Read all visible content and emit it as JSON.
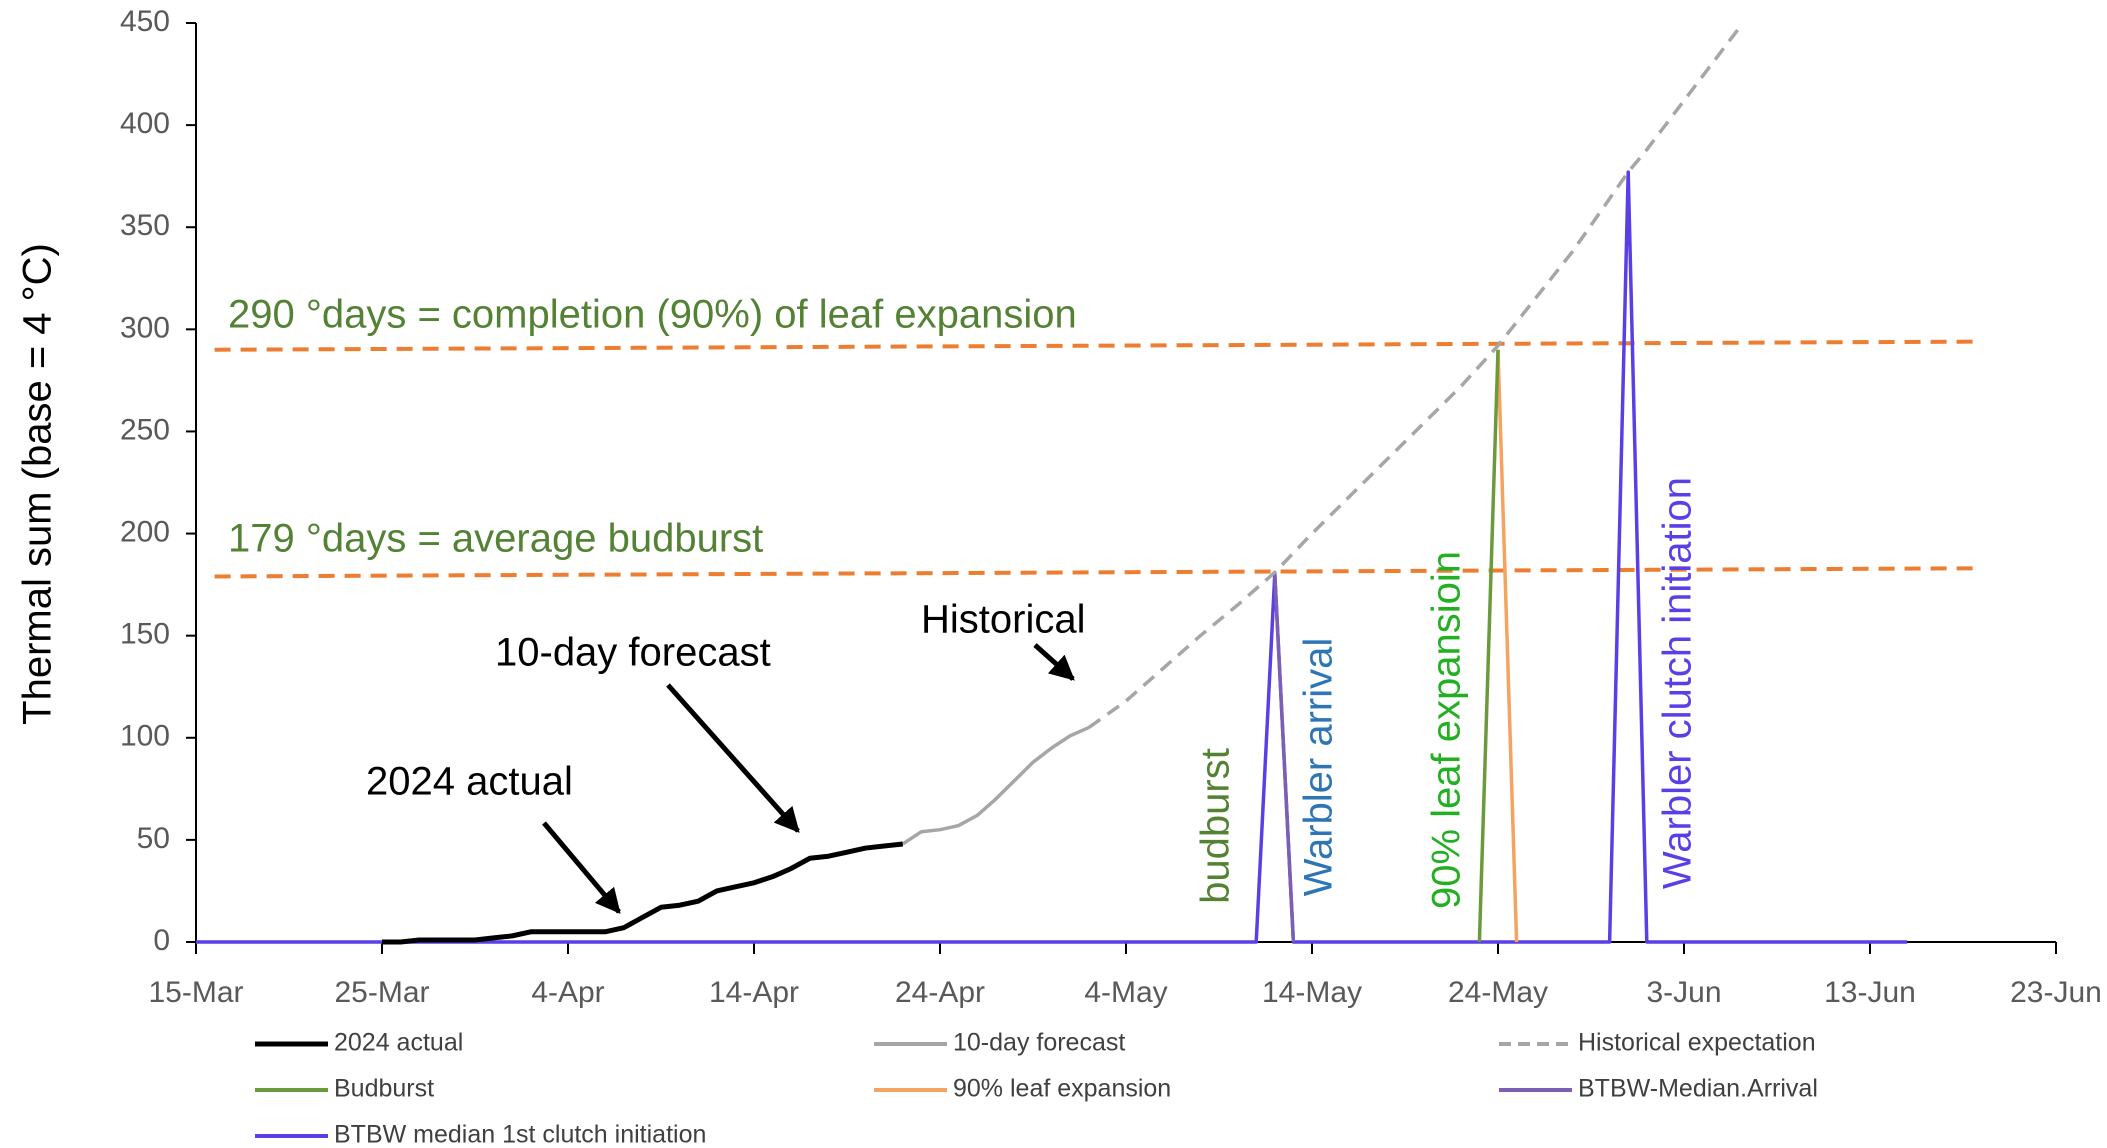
{
  "chart_data": {
    "type": "line",
    "y_label": "Thermal sum (base = 4 °C)",
    "xlim": [
      0,
      100
    ],
    "xticks": [
      {
        "value": 0,
        "label": "15-Mar"
      },
      {
        "value": 10,
        "label": "25-Mar"
      },
      {
        "value": 20,
        "label": "4-Apr"
      },
      {
        "value": 30,
        "label": "14-Apr"
      },
      {
        "value": 40,
        "label": "24-Apr"
      },
      {
        "value": 50,
        "label": "4-May"
      },
      {
        "value": 60,
        "label": "14-May"
      },
      {
        "value": 70,
        "label": "24-May"
      },
      {
        "value": 80,
        "label": "3-Jun"
      },
      {
        "value": 90,
        "label": "13-Jun"
      },
      {
        "value": 100,
        "label": "23-Jun"
      }
    ],
    "ylim": [
      0,
      450
    ],
    "yticks": [
      0,
      50,
      100,
      150,
      200,
      250,
      300,
      350,
      400,
      450
    ],
    "series": [
      {
        "name": "2024 actual",
        "color": "#000000",
        "dashed": false,
        "x": [
          10,
          11,
          12,
          13,
          14,
          15,
          16,
          17,
          18,
          19,
          20,
          21,
          22,
          23,
          24,
          25,
          26,
          27,
          28,
          29,
          30,
          31,
          32,
          33,
          34,
          35,
          36,
          37,
          38
        ],
        "values": [
          0,
          0,
          1,
          1,
          1,
          1,
          2,
          3,
          5,
          5,
          5,
          5,
          5,
          7,
          12,
          17,
          18,
          20,
          25,
          27,
          29,
          32,
          36,
          41,
          42,
          44,
          46,
          47,
          48
        ]
      },
      {
        "name": "10-day forecast",
        "color": "#a6a6a6",
        "dashed": false,
        "x": [
          38,
          39,
          40,
          41,
          42,
          43,
          44,
          45,
          46,
          47,
          48
        ],
        "values": [
          48,
          54,
          55,
          57,
          62,
          70,
          79,
          88,
          95,
          101,
          105
        ]
      },
      {
        "name": "Historical expectation",
        "color": "#a6a6a6",
        "dashed": true,
        "x": [
          48,
          50,
          52,
          54,
          56,
          58,
          60,
          62,
          64,
          66,
          68,
          70,
          72,
          74,
          76,
          77,
          78,
          80,
          82,
          83
        ],
        "values": [
          105,
          118,
          134,
          150,
          165,
          181,
          200,
          218,
          236,
          254,
          272,
          292,
          315,
          338,
          364,
          377,
          388,
          412,
          436,
          448
        ]
      },
      {
        "name": "Budburst",
        "color": "#6b9a3c",
        "dashed": false,
        "x": [
          69,
          70
        ],
        "values": [
          0,
          290
        ]
      },
      {
        "name": "90% leaf expansion",
        "color": "#f4a460",
        "dashed": false,
        "x": [
          70,
          71
        ],
        "values": [
          290,
          0
        ]
      },
      {
        "name": "BTBW-Median.Arrival",
        "color": "#7b5fb5",
        "dashed": false,
        "x": [
          58,
          59
        ],
        "values": [
          180,
          0
        ]
      },
      {
        "name": "BTBW median 1st clutch initiation",
        "color": "#5b3fe6",
        "dashed": false,
        "x": [
          0,
          57,
          58,
          59,
          76,
          77,
          78,
          92
        ],
        "values": [
          0,
          0,
          180,
          0,
          0,
          377,
          0,
          0
        ]
      }
    ],
    "reference_lines": [
      {
        "label": "290 °days = completion (90%) of leaf expansion",
        "color": "#ed7d31",
        "text_color": "#548235",
        "x": [
          1,
          96
        ],
        "values": [
          290,
          294
        ]
      },
      {
        "label": "179 °days = average budburst",
        "color": "#ed7d31",
        "text_color": "#548235",
        "x": [
          1,
          96
        ],
        "values": [
          179,
          183
        ]
      }
    ],
    "annotations": [
      "2024 actual",
      "10-day forecast",
      "Historical"
    ],
    "phase_labels": [
      {
        "text": "budburst",
        "color": "#548235"
      },
      {
        "text": "Warbler arrival",
        "color": "#2e75b6"
      },
      {
        "text": "90% leaf  expansioin",
        "color": "#22b022"
      },
      {
        "text": "Warbler clutch initiation",
        "color": "#5b3fe6"
      }
    ]
  }
}
